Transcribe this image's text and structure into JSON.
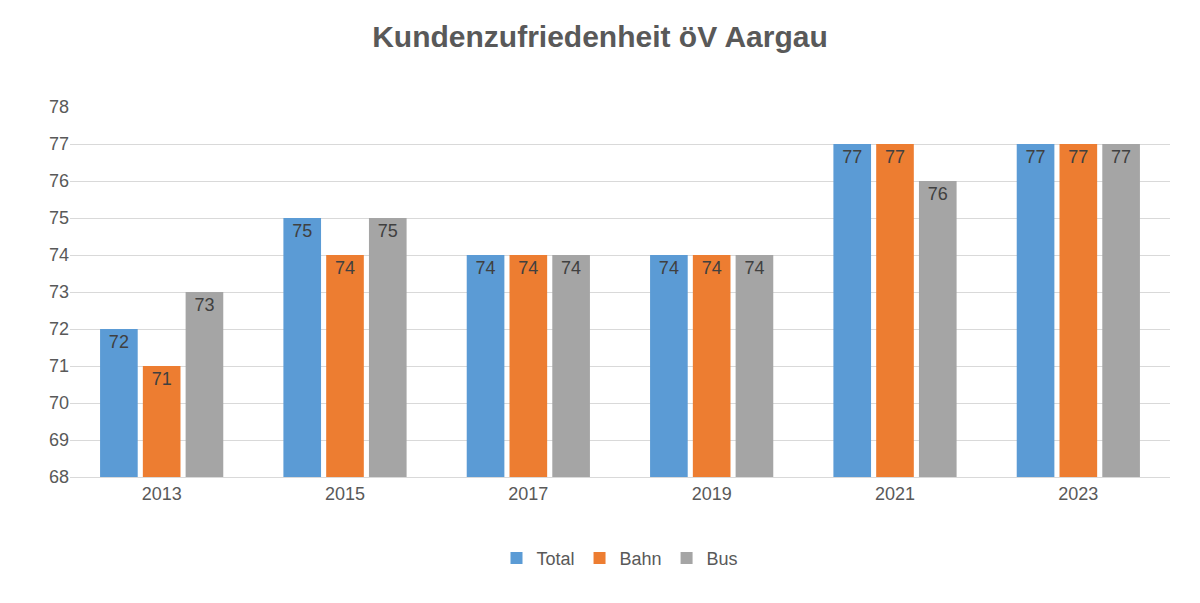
{
  "chart_data": {
    "type": "bar",
    "title": "Kundenzufriedenheit öV Aargau",
    "categories": [
      "2013",
      "2015",
      "2017",
      "2019",
      "2021",
      "2023"
    ],
    "series": [
      {
        "name": "Total",
        "color": "#5b9bd5",
        "values": [
          72,
          75,
          74,
          74,
          77,
          77
        ]
      },
      {
        "name": "Bahn",
        "color": "#ed7d31",
        "values": [
          71,
          74,
          74,
          74,
          77,
          77
        ]
      },
      {
        "name": "Bus",
        "color": "#a5a5a5",
        "values": [
          73,
          75,
          74,
          74,
          76,
          77
        ]
      }
    ],
    "ylim": [
      68,
      78
    ],
    "yticks": [
      68,
      69,
      70,
      71,
      72,
      73,
      74,
      75,
      76,
      77,
      78
    ],
    "grid": true,
    "legend": "bottom",
    "data_labels": true
  }
}
